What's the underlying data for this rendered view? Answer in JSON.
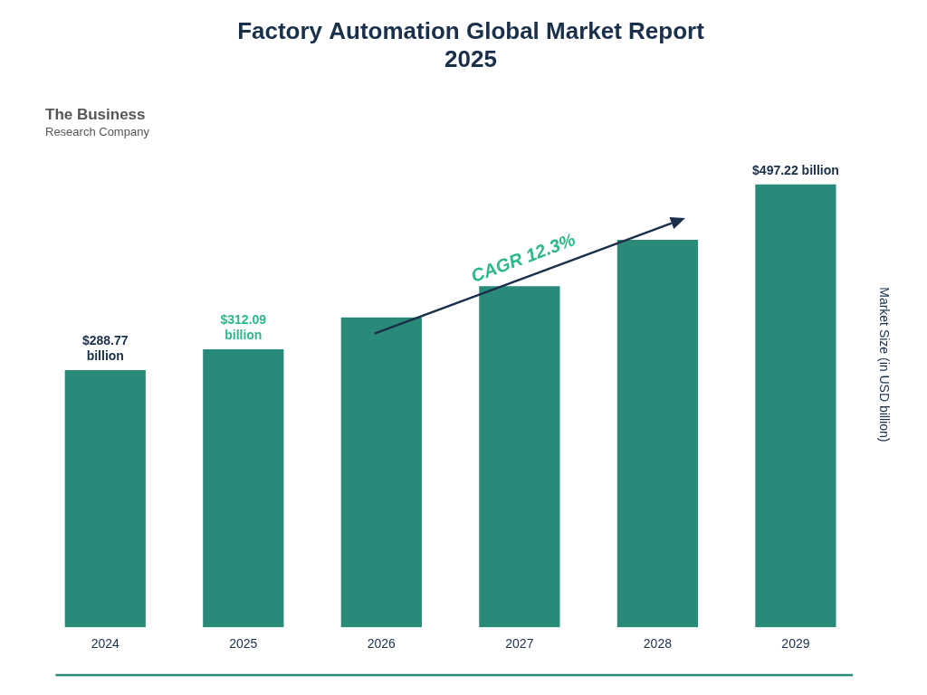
{
  "chart_data": {
    "type": "bar",
    "title": "Factory Automation Global Market Report\n2025",
    "categories": [
      "2024",
      "2025",
      "2026",
      "2027",
      "2028",
      "2029"
    ],
    "values": [
      288.77,
      312.09,
      348.0,
      383.0,
      435.0,
      497.22
    ],
    "color": "#2a8a7a",
    "ylabel": "Market Size (in USD billion)",
    "ylim": [
      0,
      590
    ],
    "grid": false,
    "tick_labels": "x",
    "annotations": [
      {
        "text": "$288.77\nbillion",
        "x": "2024",
        "color": "#1a2f4a"
      },
      {
        "text": "$312.09\nbillion",
        "x": "2025",
        "color": "#2db88a"
      },
      {
        "text": "$497.22 billion",
        "x": "2029",
        "color": "#1a2f4a"
      },
      {
        "text": "CAGR 12.3%",
        "x": [
          "2026",
          "2028"
        ],
        "color": "#2db88a",
        "arrow_color": "#1a2f4a"
      },
      {
        "text": "The Business\nResearch Company",
        "color": "#555555"
      }
    ]
  }
}
